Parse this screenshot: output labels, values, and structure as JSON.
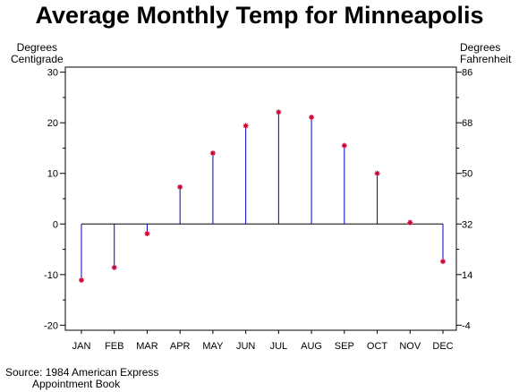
{
  "chart_data": {
    "type": "needle",
    "title": "Average Monthly Temp for Minneapolis",
    "ylabel_left_line1": "Degrees",
    "ylabel_left_line2": "Centigrade",
    "ylabel_right_line1": "Degrees",
    "ylabel_right_line2": "Fahrenheit",
    "categories": [
      "JAN",
      "FEB",
      "MAR",
      "APR",
      "MAY",
      "JUN",
      "JUL",
      "AUG",
      "SEP",
      "OCT",
      "NOV",
      "DEC"
    ],
    "series": [
      {
        "values": [
          -11.1,
          -8.6,
          -1.9,
          7.3,
          14.0,
          19.4,
          22.1,
          21.1,
          15.5,
          10.0,
          0.3,
          -7.4
        ]
      }
    ],
    "ylim_left": [
      -21,
      31
    ],
    "yticks_left": [
      -20,
      -10,
      0,
      10,
      20,
      30
    ],
    "yticks_right": [
      -4,
      14,
      32,
      50,
      68,
      86
    ],
    "baseline": 0,
    "marker": "*",
    "line_color": "#0000cc",
    "marker_color": "#cc0033",
    "grid": false,
    "footnote_line1": "Source: 1984 American Express",
    "footnote_line2": "Appointment Book"
  }
}
